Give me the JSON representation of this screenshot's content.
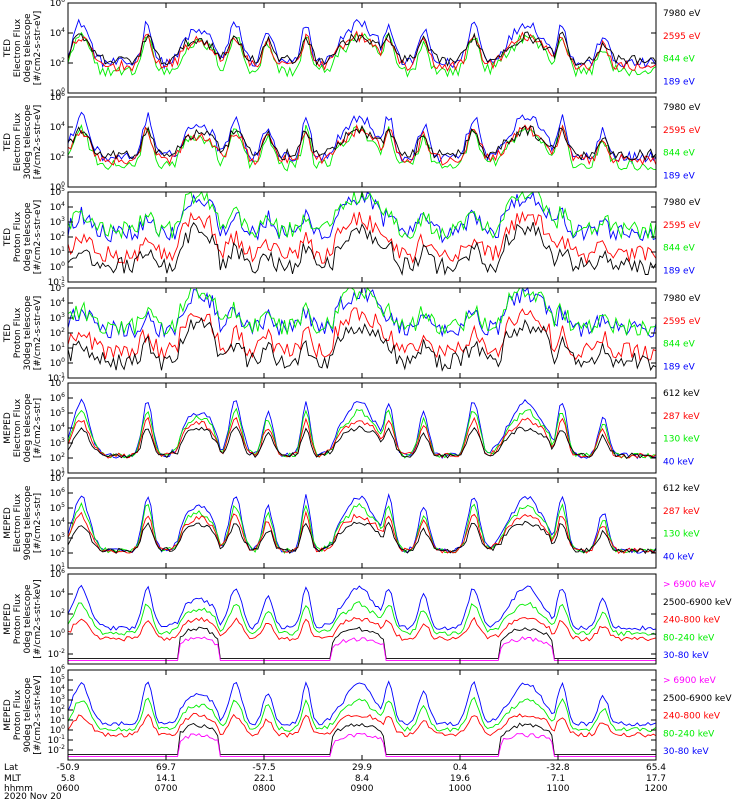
{
  "chart_data": {
    "type": "line",
    "date": "2020 Nov 20",
    "colors": {
      "blue": "#0000ff",
      "red": "#ff0000",
      "green": "#00ee00",
      "black": "#000000",
      "magenta": "#ff00ff"
    },
    "x_axis": {
      "labels": [
        "Lat",
        "MLT",
        "hhmm"
      ],
      "lat": [
        "-50.9",
        "69.7",
        "-57.5",
        "29.9",
        "0.4",
        "-32.8",
        "65.4"
      ],
      "mlt": [
        "5.8",
        "14.1",
        "22.1",
        "8.4",
        "19.6",
        "7.1",
        "17.7"
      ],
      "hhmm": [
        "0600",
        "0700",
        "0800",
        "0900",
        "1000",
        "1100",
        "1200"
      ]
    },
    "panels": [
      {
        "id": "ted-e-0",
        "ylabel": [
          "TED",
          "Electron Flux",
          "0deg telescope",
          "[#/cm2-s-str-eV]"
        ],
        "ylim_exp": [
          0,
          6
        ],
        "ytick_exps": [
          0,
          2,
          4,
          6
        ],
        "legend": [
          {
            "label": "7980 eV",
            "color": "#000000"
          },
          {
            "label": "2595 eV",
            "color": "#ff0000"
          },
          {
            "label": "844 eV",
            "color": "#00ee00"
          },
          {
            "label": "189 eV",
            "color": "#0000ff"
          }
        ]
      },
      {
        "id": "ted-e-30",
        "ylabel": [
          "TED",
          "Electron Flux",
          "30deg telescope",
          "[#/cm2-s-str-eV]"
        ],
        "ylim_exp": [
          0,
          6
        ],
        "ytick_exps": [
          0,
          2,
          4,
          6
        ],
        "legend": [
          {
            "label": "7980 eV",
            "color": "#000000"
          },
          {
            "label": "2595 eV",
            "color": "#ff0000"
          },
          {
            "label": "844 eV",
            "color": "#00ee00"
          },
          {
            "label": "189 eV",
            "color": "#0000ff"
          }
        ]
      },
      {
        "id": "ted-p-0",
        "ylabel": [
          "TED",
          "Proton Flux",
          "0deg telescope",
          "[#/cm2-s-str-eV]"
        ],
        "ylim_exp": [
          -1,
          5
        ],
        "ytick_exps": [
          -1,
          0,
          1,
          2,
          3,
          4,
          5
        ],
        "legend": [
          {
            "label": "7980 eV",
            "color": "#000000"
          },
          {
            "label": "2595 eV",
            "color": "#ff0000"
          },
          {
            "label": "844 eV",
            "color": "#00ee00"
          },
          {
            "label": "189 eV",
            "color": "#0000ff"
          }
        ]
      },
      {
        "id": "ted-p-30",
        "ylabel": [
          "TED",
          "Proton Flux",
          "30deg telescope",
          "[#/cm2-s-str-eV]"
        ],
        "ylim_exp": [
          -1,
          5
        ],
        "ytick_exps": [
          -1,
          0,
          1,
          2,
          3,
          4,
          5
        ],
        "legend": [
          {
            "label": "7980 eV",
            "color": "#000000"
          },
          {
            "label": "2595 eV",
            "color": "#ff0000"
          },
          {
            "label": "844 eV",
            "color": "#00ee00"
          },
          {
            "label": "189 eV",
            "color": "#0000ff"
          }
        ]
      },
      {
        "id": "meped-e-0",
        "ylabel": [
          "MEPED",
          "Electron Flux",
          "0deg telescope",
          "[#/cm2-s-str]"
        ],
        "ylim_exp": [
          1,
          7
        ],
        "ytick_exps": [
          1,
          2,
          3,
          4,
          5,
          6,
          7
        ],
        "legend": [
          {
            "label": "612 keV",
            "color": "#000000"
          },
          {
            "label": "287 keV",
            "color": "#ff0000"
          },
          {
            "label": "130 keV",
            "color": "#00ee00"
          },
          {
            "label": "40 keV",
            "color": "#0000ff"
          }
        ]
      },
      {
        "id": "meped-e-90",
        "ylabel": [
          "MEPED",
          "Electron Flux",
          "90deg telescope",
          "[#/cm2-s-str]"
        ],
        "ylim_exp": [
          1,
          7
        ],
        "ytick_exps": [
          1,
          2,
          3,
          4,
          5,
          6,
          7
        ],
        "legend": [
          {
            "label": "612 keV",
            "color": "#000000"
          },
          {
            "label": "287 keV",
            "color": "#ff0000"
          },
          {
            "label": "130 keV",
            "color": "#00ee00"
          },
          {
            "label": "40 keV",
            "color": "#0000ff"
          }
        ]
      },
      {
        "id": "meped-p-0",
        "ylabel": [
          "MEPED",
          "Proton Flux",
          "0deg telescope",
          "[#/cm2-s-str-keV]"
        ],
        "ylim_exp": [
          -3,
          6
        ],
        "ytick_exps": [
          -2,
          0,
          2,
          4,
          6
        ],
        "legend": [
          {
            "label": "> 6900 keV",
            "color": "#ff00ff"
          },
          {
            "label": "2500-6900 keV",
            "color": "#000000"
          },
          {
            "label": "240-800 keV",
            "color": "#ff0000"
          },
          {
            "label": "80-240 keV",
            "color": "#00ee00"
          },
          {
            "label": "30-80 keV",
            "color": "#0000ff"
          }
        ]
      },
      {
        "id": "meped-p-90",
        "ylabel": [
          "MEPED",
          "Proton Flux",
          "90deg telescope",
          "[#/cm2-s-str-keV]"
        ],
        "ylim_exp": [
          -3,
          6
        ],
        "ytick_exps": [
          -2,
          -1,
          0,
          1,
          2,
          3,
          4,
          5,
          6
        ],
        "legend": [
          {
            "label": "> 6900 keV",
            "color": "#ff00ff"
          },
          {
            "label": "2500-6900 keV",
            "color": "#000000"
          },
          {
            "label": "240-800 keV",
            "color": "#ff0000"
          },
          {
            "label": "80-240 keV",
            "color": "#00ee00"
          },
          {
            "label": "30-80 keV",
            "color": "#0000ff"
          }
        ]
      }
    ]
  }
}
